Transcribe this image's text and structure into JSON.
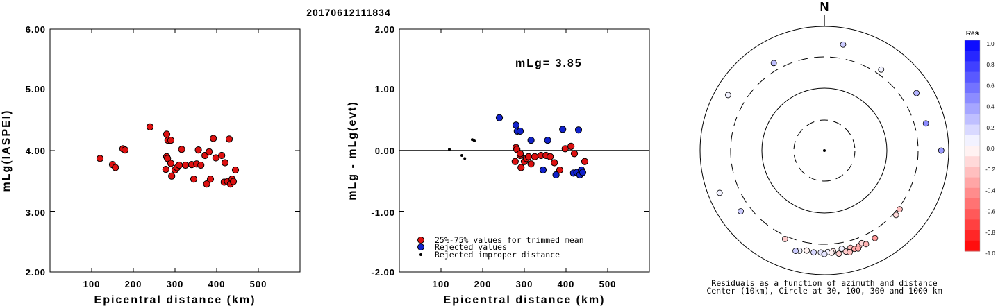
{
  "title": "20170612111834",
  "colors": {
    "kept": "#dd1111",
    "rejected": "#1122cc",
    "improper": "#000000"
  },
  "chart_data": [
    {
      "type": "scatter",
      "title": "",
      "xlabel": "Epicentral distance (km)",
      "ylabel": "mLg(IASPEI)",
      "xlim": [
        0,
        600
      ],
      "ylim": [
        2.0,
        6.0
      ],
      "xticks": [
        "100",
        "200",
        "300",
        "400",
        "500"
      ],
      "yticks": [
        "2.00",
        "3.00",
        "4.00",
        "5.00",
        "6.00"
      ],
      "series": [
        {
          "color": "#dd1111",
          "points": [
            [
              120,
              3.87
            ],
            [
              150,
              3.77
            ],
            [
              157,
              3.72
            ],
            [
              175,
              4.03
            ],
            [
              180,
              4.01
            ],
            [
              240,
              4.39
            ],
            [
              280,
              4.27
            ],
            [
              283,
              4.17
            ],
            [
              290,
              4.17
            ],
            [
              280,
              3.9
            ],
            [
              282,
              3.87
            ],
            [
              278,
              3.69
            ],
            [
              290,
              3.79
            ],
            [
              292,
              3.58
            ],
            [
              300,
              3.68
            ],
            [
              305,
              3.72
            ],
            [
              310,
              3.76
            ],
            [
              316,
              4.02
            ],
            [
              325,
              3.76
            ],
            [
              340,
              3.77
            ],
            [
              345,
              3.53
            ],
            [
              352,
              3.78
            ],
            [
              356,
              4.01
            ],
            [
              362,
              3.76
            ],
            [
              372,
              3.92
            ],
            [
              376,
              3.45
            ],
            [
              382,
              3.98
            ],
            [
              385,
              3.53
            ],
            [
              392,
              4.2
            ],
            [
              398,
              3.88
            ],
            [
              412,
              3.92
            ],
            [
              418,
              3.48
            ],
            [
              420,
              3.8
            ],
            [
              426,
              3.49
            ],
            [
              430,
              4.19
            ],
            [
              433,
              3.45
            ],
            [
              437,
              3.53
            ],
            [
              440,
              3.49
            ],
            [
              445,
              3.68
            ]
          ]
        }
      ]
    },
    {
      "type": "scatter",
      "title": "",
      "xlabel": "Epicentral distance (km)",
      "ylabel": "mLg - mLg(evt)",
      "xlim": [
        0,
        600
      ],
      "ylim": [
        -2.0,
        2.0
      ],
      "xticks": [
        "100",
        "200",
        "300",
        "400",
        "500"
      ],
      "yticks": [
        "-2.00",
        "-1.00",
        "0.00",
        "1.00",
        "2.00"
      ],
      "annotation": "mLg= 3.85",
      "legend": [
        "25%-75% values for trimmed mean",
        "Rejected values",
        "Rejected improper distance"
      ],
      "series": [
        {
          "name": "25%-75% values for trimmed mean",
          "color": "#dd1111",
          "points": [
            [
              280,
              0.05
            ],
            [
              282,
              0.02
            ],
            [
              278,
              -0.18
            ],
            [
              290,
              -0.08
            ],
            [
              292,
              -0.28
            ],
            [
              300,
              -0.18
            ],
            [
              305,
              -0.13
            ],
            [
              310,
              -0.1
            ],
            [
              325,
              -0.1
            ],
            [
              340,
              -0.08
            ],
            [
              352,
              -0.08
            ],
            [
              362,
              -0.1
            ],
            [
              385,
              -0.32
            ],
            [
              398,
              0.03
            ],
            [
              412,
              0.07
            ],
            [
              420,
              -0.05
            ],
            [
              445,
              -0.18
            ],
            [
              290,
              -0.05
            ],
            [
              316,
              -0.22
            ],
            [
              372,
              -0.2
            ]
          ]
        },
        {
          "name": "Rejected values",
          "color": "#1122cc",
          "points": [
            [
              240,
              0.54
            ],
            [
              280,
              0.42
            ],
            [
              283,
              0.32
            ],
            [
              290,
              0.32
            ],
            [
              316,
              0.17
            ],
            [
              356,
              0.17
            ],
            [
              392,
              0.35
            ],
            [
              430,
              0.34
            ],
            [
              345,
              -0.32
            ],
            [
              376,
              -0.4
            ],
            [
              418,
              -0.37
            ],
            [
              426,
              -0.36
            ],
            [
              433,
              -0.4
            ],
            [
              437,
              -0.32
            ],
            [
              440,
              -0.36
            ]
          ]
        },
        {
          "name": "Rejected improper distance",
          "color": "#000000",
          "points": [
            [
              120,
              0.02
            ],
            [
              150,
              -0.08
            ],
            [
              157,
              -0.13
            ],
            [
              175,
              0.18
            ],
            [
              180,
              0.16
            ]
          ]
        }
      ]
    },
    {
      "type": "scatter",
      "title": "N",
      "caption_lines": [
        "Residuals as a function of azimuth and distance",
        "Center (10km), Circle at 30, 100, 300 and 1000 km"
      ],
      "rings_km": [
        10,
        30,
        100,
        300,
        1000
      ],
      "colorbar": {
        "label": "Res",
        "ticks": [
          "1.0",
          "0.8",
          "0.6",
          "0.4",
          "0.2",
          "0.0",
          "-0.2",
          "-0.4",
          "-0.6",
          "-0.8",
          "-1.0"
        ]
      },
      "points_az_dist_res": [
        [
          -60,
          700,
          0.05
        ],
        [
          -30,
          470,
          0.25
        ],
        [
          10,
          620,
          0.2
        ],
        [
          35,
          420,
          0.05
        ],
        [
          58,
          640,
          0.3
        ],
        [
          75,
          560,
          0.45
        ],
        [
          90,
          830,
          0.4
        ],
        [
          128,
          340,
          -0.25
        ],
        [
          132,
          360,
          -0.15
        ],
        [
          -112,
          740,
          0.05
        ],
        [
          -126,
          520,
          0.2
        ],
        [
          -156,
          370,
          -0.2
        ],
        [
          178,
          480,
          0.05
        ],
        [
          182,
          490,
          0.1
        ],
        [
          175,
          470,
          -0.1
        ],
        [
          170,
          440,
          0.05
        ],
        [
          186,
          500,
          0.15
        ],
        [
          190,
          480,
          -0.05
        ],
        [
          165,
          460,
          -0.25
        ],
        [
          168,
          520,
          -0.2
        ],
        [
          160,
          480,
          -0.3
        ],
        [
          163,
          510,
          -0.35
        ],
        [
          158,
          440,
          -0.15
        ],
        [
          150,
          470,
          -0.4
        ],
        [
          172,
          540,
          -0.2
        ],
        [
          194,
          520,
          0.05
        ],
        [
          196,
          545,
          0.2
        ],
        [
          156,
          500,
          -0.3
        ],
        [
          166,
          555,
          -0.25
        ],
        [
          161,
          530,
          -0.35
        ],
        [
          176,
          500,
          -0.05
        ],
        [
          180,
          525,
          0.1
        ]
      ]
    }
  ]
}
